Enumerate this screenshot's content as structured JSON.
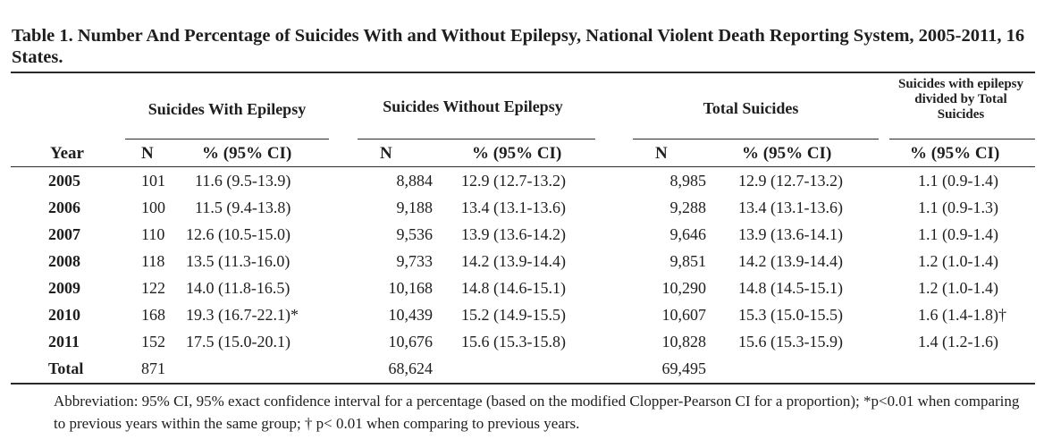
{
  "title": "Table 1. Number And Percentage of Suicides With and Without Epilepsy, National Violent Death Reporting System, 2005-2011, 16 States.",
  "groups": {
    "with": "Suicides With Epilepsy",
    "without": "Suicides Without Epilepsy",
    "total": "Total Suicides",
    "ratio": "Suicides with epilepsy divided by Total Suicides"
  },
  "subheaders": {
    "year": "Year",
    "n": "N",
    "pct": "% (95% CI)"
  },
  "rows": [
    {
      "year": "2005",
      "n1": "101",
      "p1": "11.6 (9.5-13.9)",
      "n2": "8,884",
      "p2": "12.9 (12.7-13.2)",
      "n3": "8,985",
      "p3": "12.9 (12.7-13.2)",
      "p4": "1.1 (0.9-1.4)"
    },
    {
      "year": "2006",
      "n1": "100",
      "p1": "11.5 (9.4-13.8)",
      "n2": "9,188",
      "p2": "13.4 (13.1-13.6)",
      "n3": "9,288",
      "p3": "13.4 (13.1-13.6)",
      "p4": "1.1 (0.9-1.3)"
    },
    {
      "year": "2007",
      "n1": "110",
      "p1": "12.6 (10.5-15.0)",
      "n2": "9,536",
      "p2": "13.9 (13.6-14.2)",
      "n3": "9,646",
      "p3": "13.9 (13.6-14.1)",
      "p4": "1.1 (0.9-1.4)"
    },
    {
      "year": "2008",
      "n1": "118",
      "p1": "13.5 (11.3-16.0)",
      "n2": "9,733",
      "p2": "14.2 (13.9-14.4)",
      "n3": "9,851",
      "p3": "14.2 (13.9-14.4)",
      "p4": "1.2 (1.0-1.4)"
    },
    {
      "year": "2009",
      "n1": "122",
      "p1": "14.0 (11.8-16.5)",
      "n2": "10,168",
      "p2": "14.8 (14.6-15.1)",
      "n3": "10,290",
      "p3": "14.8 (14.5-15.1)",
      "p4": "1.2 (1.0-1.4)"
    },
    {
      "year": "2010",
      "n1": "168",
      "p1": "19.3 (16.7-22.1)*",
      "n2": "10,439",
      "p2": "15.2 (14.9-15.5)",
      "n3": "10,607",
      "p3": "15.3 (15.0-15.5)",
      "p4": "1.6 (1.4-1.8)†"
    },
    {
      "year": "2011",
      "n1": "152",
      "p1": "17.5 (15.0-20.1)",
      "n2": "10,676",
      "p2": "15.6 (15.3-15.8)",
      "n3": "10,828",
      "p3": "15.6 (15.3-15.9)",
      "p4": "1.4 (1.2-1.6)"
    }
  ],
  "total_row": {
    "label": "Total",
    "n1": "871",
    "n2": "68,624",
    "n3": "69,495"
  },
  "footnote": "Abbreviation: 95% CI, 95% exact confidence interval for a percentage (based on the modified Clopper-Pearson CI for a proportion); *p<0.01 when comparing to previous years within the same group; † p< 0.01 when comparing to previous years."
}
